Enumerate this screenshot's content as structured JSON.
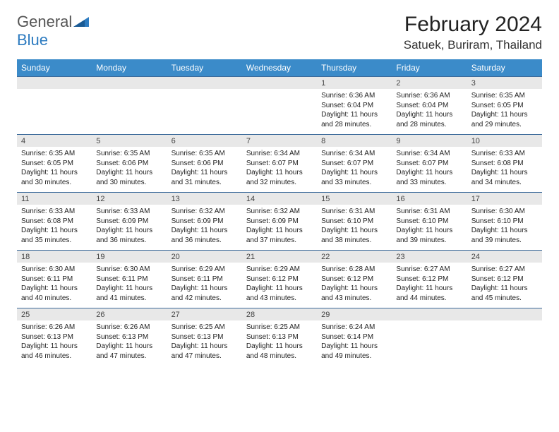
{
  "logo": {
    "text1": "General",
    "text2": "Blue"
  },
  "title": "February 2024",
  "location": "Satuek, Buriram, Thailand",
  "colors": {
    "header_bg": "#3b8bc9",
    "row_border": "#3b6a9a",
    "daynum_bg": "#e8e8e8",
    "logo_blue": "#2d7bc0"
  },
  "day_labels": [
    "Sunday",
    "Monday",
    "Tuesday",
    "Wednesday",
    "Thursday",
    "Friday",
    "Saturday"
  ],
  "weeks": [
    [
      null,
      null,
      null,
      null,
      {
        "n": "1",
        "sr": "6:36 AM",
        "ss": "6:04 PM",
        "dl": "11 hours and 28 minutes."
      },
      {
        "n": "2",
        "sr": "6:36 AM",
        "ss": "6:04 PM",
        "dl": "11 hours and 28 minutes."
      },
      {
        "n": "3",
        "sr": "6:35 AM",
        "ss": "6:05 PM",
        "dl": "11 hours and 29 minutes."
      }
    ],
    [
      {
        "n": "4",
        "sr": "6:35 AM",
        "ss": "6:05 PM",
        "dl": "11 hours and 30 minutes."
      },
      {
        "n": "5",
        "sr": "6:35 AM",
        "ss": "6:06 PM",
        "dl": "11 hours and 30 minutes."
      },
      {
        "n": "6",
        "sr": "6:35 AM",
        "ss": "6:06 PM",
        "dl": "11 hours and 31 minutes."
      },
      {
        "n": "7",
        "sr": "6:34 AM",
        "ss": "6:07 PM",
        "dl": "11 hours and 32 minutes."
      },
      {
        "n": "8",
        "sr": "6:34 AM",
        "ss": "6:07 PM",
        "dl": "11 hours and 33 minutes."
      },
      {
        "n": "9",
        "sr": "6:34 AM",
        "ss": "6:07 PM",
        "dl": "11 hours and 33 minutes."
      },
      {
        "n": "10",
        "sr": "6:33 AM",
        "ss": "6:08 PM",
        "dl": "11 hours and 34 minutes."
      }
    ],
    [
      {
        "n": "11",
        "sr": "6:33 AM",
        "ss": "6:08 PM",
        "dl": "11 hours and 35 minutes."
      },
      {
        "n": "12",
        "sr": "6:33 AM",
        "ss": "6:09 PM",
        "dl": "11 hours and 36 minutes."
      },
      {
        "n": "13",
        "sr": "6:32 AM",
        "ss": "6:09 PM",
        "dl": "11 hours and 36 minutes."
      },
      {
        "n": "14",
        "sr": "6:32 AM",
        "ss": "6:09 PM",
        "dl": "11 hours and 37 minutes."
      },
      {
        "n": "15",
        "sr": "6:31 AM",
        "ss": "6:10 PM",
        "dl": "11 hours and 38 minutes."
      },
      {
        "n": "16",
        "sr": "6:31 AM",
        "ss": "6:10 PM",
        "dl": "11 hours and 39 minutes."
      },
      {
        "n": "17",
        "sr": "6:30 AM",
        "ss": "6:10 PM",
        "dl": "11 hours and 39 minutes."
      }
    ],
    [
      {
        "n": "18",
        "sr": "6:30 AM",
        "ss": "6:11 PM",
        "dl": "11 hours and 40 minutes."
      },
      {
        "n": "19",
        "sr": "6:30 AM",
        "ss": "6:11 PM",
        "dl": "11 hours and 41 minutes."
      },
      {
        "n": "20",
        "sr": "6:29 AM",
        "ss": "6:11 PM",
        "dl": "11 hours and 42 minutes."
      },
      {
        "n": "21",
        "sr": "6:29 AM",
        "ss": "6:12 PM",
        "dl": "11 hours and 43 minutes."
      },
      {
        "n": "22",
        "sr": "6:28 AM",
        "ss": "6:12 PM",
        "dl": "11 hours and 43 minutes."
      },
      {
        "n": "23",
        "sr": "6:27 AM",
        "ss": "6:12 PM",
        "dl": "11 hours and 44 minutes."
      },
      {
        "n": "24",
        "sr": "6:27 AM",
        "ss": "6:12 PM",
        "dl": "11 hours and 45 minutes."
      }
    ],
    [
      {
        "n": "25",
        "sr": "6:26 AM",
        "ss": "6:13 PM",
        "dl": "11 hours and 46 minutes."
      },
      {
        "n": "26",
        "sr": "6:26 AM",
        "ss": "6:13 PM",
        "dl": "11 hours and 47 minutes."
      },
      {
        "n": "27",
        "sr": "6:25 AM",
        "ss": "6:13 PM",
        "dl": "11 hours and 47 minutes."
      },
      {
        "n": "28",
        "sr": "6:25 AM",
        "ss": "6:13 PM",
        "dl": "11 hours and 48 minutes."
      },
      {
        "n": "29",
        "sr": "6:24 AM",
        "ss": "6:14 PM",
        "dl": "11 hours and 49 minutes."
      },
      null,
      null
    ]
  ],
  "labels": {
    "sunrise": "Sunrise: ",
    "sunset": "Sunset: ",
    "daylight": "Daylight: "
  }
}
